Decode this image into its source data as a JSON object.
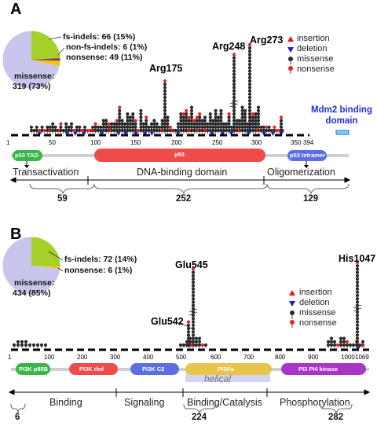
{
  "panel_a": {
    "label": "A",
    "pie": {
      "labels": [
        "fs-indels: 66 (15%)",
        "non-fs-indels: 6 (1%)",
        "nonsense: 49 (11%)",
        "missense:",
        "319 (73%)"
      ],
      "slices": [
        {
          "name": "fs-indels",
          "count": 66,
          "pct": 15,
          "color": "#a6cf2a"
        },
        {
          "name": "non-fs-indels",
          "count": 6,
          "pct": 1,
          "color": "#7a3a7a"
        },
        {
          "name": "nonsense",
          "count": 49,
          "pct": 11,
          "color": "#f5c400"
        },
        {
          "name": "missense",
          "count": 319,
          "pct": 73,
          "color": "#c9c6ee"
        }
      ]
    },
    "hotspots": [
      "Arg175",
      "Arg248",
      "Arg273"
    ],
    "legend": [
      "insertion",
      "deletion",
      "missense",
      "nonsense"
    ],
    "mdm2_label_line1": "Mdm2 binding",
    "mdm2_label_line2": "domain",
    "axis_ticks": [
      "1",
      "50",
      "100",
      "150",
      "200",
      "250",
      "300",
      "350",
      "394"
    ],
    "domains": [
      "p53 TAD",
      "p53",
      "p53 tetramer"
    ],
    "functions": [
      "Transactivation",
      "DNA-binding domain",
      "Oligomerization"
    ],
    "counts": [
      "59",
      "252",
      "129"
    ]
  },
  "panel_b": {
    "label": "B",
    "pie": {
      "labels": [
        "fs-indels: 72 (14%)",
        "nonsense: 6 (1%)",
        "missense:",
        "434 (85%)"
      ],
      "slices": [
        {
          "name": "fs-indels",
          "count": 72,
          "pct": 14,
          "color": "#a6cf2a"
        },
        {
          "name": "nonsense",
          "count": 6,
          "pct": 1,
          "color": "#f5c400"
        },
        {
          "name": "missense",
          "count": 434,
          "pct": 85,
          "color": "#c9c6ee"
        }
      ]
    },
    "hotspots": [
      "Glu545",
      "Glu542",
      "His1047"
    ],
    "legend": [
      "insertion",
      "deletion",
      "missense",
      "nonsense"
    ],
    "axis_ticks": [
      "1",
      "100",
      "200",
      "300",
      "400",
      "500",
      "600",
      "700",
      "800",
      "900",
      "1000",
      "1069"
    ],
    "domains": [
      "PI3K p85B",
      "PI3K rbd",
      "PI3K C2",
      "PI3Ka",
      "PI3 PI4 kinase"
    ],
    "helical_label": "helical",
    "functions": [
      "Binding",
      "Signaling",
      "Binding/Catalysis",
      "Phosphorylation"
    ],
    "counts": [
      "6",
      "224",
      "282"
    ]
  },
  "colors": {
    "insertion": "#e8141c",
    "deletion": "#1a1adf",
    "missense": "#2a2a2a",
    "nonsense": "#ee2222",
    "mdm2": "#1e2fd8",
    "domain_p53": "#ef4b4b",
    "domain_tad": "#3ab54a",
    "domain_tetramer": "#5b6fe0",
    "domain_c2": "#5b6fe0",
    "domain_pi3ka": "#e8c44a",
    "domain_kinase": "#a735c6",
    "helical": "#d2d4f2"
  }
}
